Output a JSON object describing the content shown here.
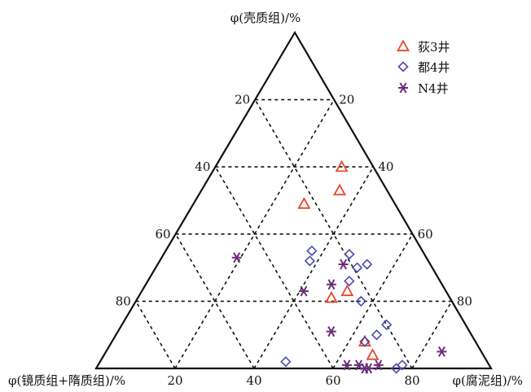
{
  "chart_data": {
    "type": "scatter",
    "subtype": "ternary",
    "axes": {
      "top": "φ(壳质组)/%",
      "left": "φ(镜质组+隋质组)/%",
      "right": "φ(腐泥组)/%"
    },
    "ticks": {
      "left_edge": [
        "20",
        "40",
        "60",
        "80"
      ],
      "right_edge": [
        "80",
        "60",
        "40",
        "20"
      ],
      "bottom_edge": [
        "20",
        "40",
        "60",
        "80"
      ]
    },
    "grid": true,
    "grid_style": "dashed",
    "legend_position": "top-right",
    "series": [
      {
        "name": "荻3井",
        "marker": "triangle-open",
        "color": "#e8452c",
        "points": [
          {
            "top": 60,
            "right": 32
          },
          {
            "top": 53,
            "right": 35
          },
          {
            "top": 49,
            "right": 28
          },
          {
            "top": 21,
            "right": 49
          },
          {
            "top": 23,
            "right": 52
          },
          {
            "top": 8,
            "right": 64
          },
          {
            "top": 4,
            "right": 68
          }
        ]
      },
      {
        "name": "都4井",
        "marker": "diamond-open",
        "color": "#4a4ab0",
        "points": [
          {
            "top": 35,
            "right": 37
          },
          {
            "top": 32,
            "right": 38
          },
          {
            "top": 34,
            "right": 47
          },
          {
            "top": 30,
            "right": 51
          },
          {
            "top": 31,
            "right": 53
          },
          {
            "top": 26,
            "right": 51
          },
          {
            "top": 20,
            "right": 57
          },
          {
            "top": 13,
            "right": 67
          },
          {
            "top": 10,
            "right": 66
          },
          {
            "top": 8,
            "right": 64
          },
          {
            "top": 2,
            "right": 47
          },
          {
            "top": 1,
            "right": 77
          },
          {
            "top": 0,
            "right": 76
          }
        ]
      },
      {
        "name": "N4井",
        "marker": "asterisk",
        "color": "#6b2d7a",
        "points": [
          {
            "top": 33,
            "right": 19
          },
          {
            "top": 31,
            "right": 47
          },
          {
            "top": 23,
            "right": 41
          },
          {
            "top": 25,
            "right": 47
          },
          {
            "top": 11,
            "right": 54
          },
          {
            "top": 1,
            "right": 63
          },
          {
            "top": 1,
            "right": 66
          },
          {
            "top": 0,
            "right": 69
          },
          {
            "top": 0,
            "right": 68
          },
          {
            "top": 1,
            "right": 71
          },
          {
            "top": 5,
            "right": 85
          }
        ]
      }
    ]
  }
}
